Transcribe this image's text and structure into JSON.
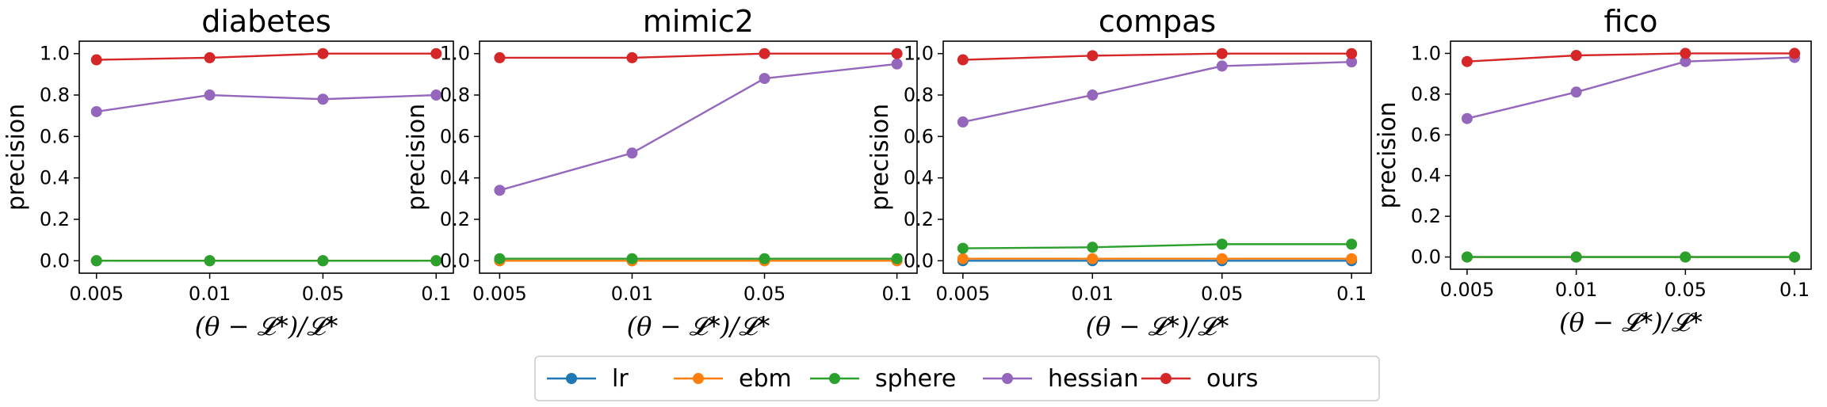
{
  "chart_data": [
    {
      "type": "line",
      "title": "diabetes",
      "xlabel": "(θ − 𝓛*)/𝓛*",
      "ylabel": "precision",
      "categories": [
        "0.005",
        "0.01",
        "0.05",
        "0.1"
      ],
      "ylim": [
        -0.06,
        1.06
      ],
      "yticks": [
        "0.0",
        "0.2",
        "0.4",
        "0.6",
        "0.8",
        "1.0"
      ],
      "series": [
        {
          "name": "lr",
          "color": "#1f77b4",
          "values": [
            0.0,
            0.0,
            0.0,
            0.0
          ]
        },
        {
          "name": "ebm",
          "color": "#ff7f0e",
          "values": [
            0.0,
            0.0,
            0.0,
            0.0
          ]
        },
        {
          "name": "sphere",
          "color": "#2ca02c",
          "values": [
            0.0,
            0.0,
            0.0,
            0.0
          ]
        },
        {
          "name": "hessian",
          "color": "#9467bd",
          "values": [
            0.72,
            0.8,
            0.78,
            0.8
          ]
        },
        {
          "name": "ours",
          "color": "#d62728",
          "values": [
            0.97,
            0.98,
            1.0,
            1.0
          ]
        }
      ]
    },
    {
      "type": "line",
      "title": "mimic2",
      "xlabel": "(θ − 𝓛*)/𝓛*",
      "ylabel": "precision",
      "categories": [
        "0.005",
        "0.01",
        "0.05",
        "0.1"
      ],
      "ylim": [
        -0.06,
        1.06
      ],
      "yticks": [
        "0.0",
        "0.2",
        "0.4",
        "0.6",
        "0.8",
        "1.0"
      ],
      "series": [
        {
          "name": "lr",
          "color": "#1f77b4",
          "values": [
            0.0,
            0.0,
            0.0,
            0.0
          ]
        },
        {
          "name": "ebm",
          "color": "#ff7f0e",
          "values": [
            0.0,
            0.0,
            0.0,
            0.0
          ]
        },
        {
          "name": "sphere",
          "color": "#2ca02c",
          "values": [
            0.01,
            0.01,
            0.01,
            0.01
          ]
        },
        {
          "name": "hessian",
          "color": "#9467bd",
          "values": [
            0.34,
            0.52,
            0.88,
            0.95
          ]
        },
        {
          "name": "ours",
          "color": "#d62728",
          "values": [
            0.98,
            0.98,
            1.0,
            1.0
          ]
        }
      ]
    },
    {
      "type": "line",
      "title": "compas",
      "xlabel": "(θ − 𝓛*)/𝓛*",
      "ylabel": "precision",
      "categories": [
        "0.005",
        "0.01",
        "0.05",
        "0.1"
      ],
      "ylim": [
        -0.06,
        1.06
      ],
      "yticks": [
        "0.0",
        "0.2",
        "0.4",
        "0.6",
        "0.8",
        "1.0"
      ],
      "series": [
        {
          "name": "lr",
          "color": "#1f77b4",
          "values": [
            0.0,
            0.0,
            0.0,
            0.0
          ]
        },
        {
          "name": "ebm",
          "color": "#ff7f0e",
          "values": [
            0.01,
            0.01,
            0.01,
            0.01
          ]
        },
        {
          "name": "sphere",
          "color": "#2ca02c",
          "values": [
            0.06,
            0.065,
            0.08,
            0.08
          ]
        },
        {
          "name": "hessian",
          "color": "#9467bd",
          "values": [
            0.67,
            0.8,
            0.94,
            0.96
          ]
        },
        {
          "name": "ours",
          "color": "#d62728",
          "values": [
            0.97,
            0.99,
            1.0,
            1.0
          ]
        }
      ]
    },
    {
      "type": "line",
      "title": "fico",
      "xlabel": "(θ − 𝓛*)/𝓛*",
      "ylabel": "precision",
      "categories": [
        "0.005",
        "0.01",
        "0.05",
        "0.1"
      ],
      "ylim": [
        -0.06,
        1.06
      ],
      "yticks": [
        "0.0",
        "0.2",
        "0.4",
        "0.6",
        "0.8",
        "1.0"
      ],
      "series": [
        {
          "name": "lr",
          "color": "#1f77b4",
          "values": [
            0.0,
            0.0,
            0.0,
            0.0
          ]
        },
        {
          "name": "ebm",
          "color": "#ff7f0e",
          "values": [
            0.0,
            0.0,
            0.0,
            0.0
          ]
        },
        {
          "name": "sphere",
          "color": "#2ca02c",
          "values": [
            0.0,
            0.0,
            0.0,
            0.0
          ]
        },
        {
          "name": "hessian",
          "color": "#9467bd",
          "values": [
            0.68,
            0.81,
            0.96,
            0.98
          ]
        },
        {
          "name": "ours",
          "color": "#d62728",
          "values": [
            0.96,
            0.99,
            1.0,
            1.0
          ]
        }
      ]
    }
  ],
  "legend": {
    "position": "bottom-center",
    "items": [
      {
        "name": "lr",
        "color": "#1f77b4"
      },
      {
        "name": "ebm",
        "color": "#ff7f0e"
      },
      {
        "name": "sphere",
        "color": "#2ca02c"
      },
      {
        "name": "hessian",
        "color": "#9467bd"
      },
      {
        "name": "ours",
        "color": "#d62728"
      }
    ]
  }
}
